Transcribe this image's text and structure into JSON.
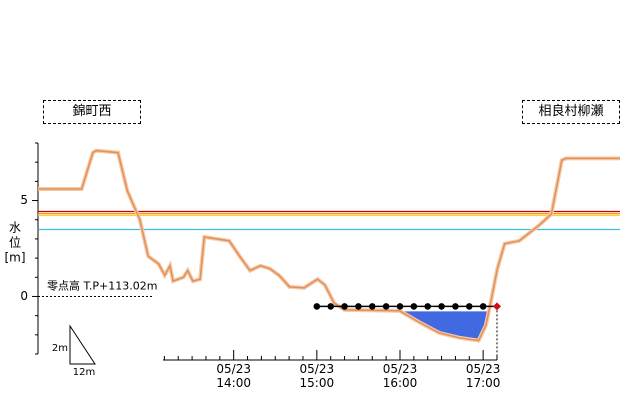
{
  "chart_data": {
    "type": "cross-section",
    "left_bank": "錦町西",
    "right_bank": "相良村柳瀬",
    "y_label": [
      "水",
      "位",
      "[m]"
    ],
    "zero_label": "零点高 T.P+113.02m",
    "scale_height": "2m",
    "scale_width": "12m",
    "ylim": [
      -3,
      8
    ],
    "yticks": [
      0,
      5
    ],
    "yminorticks": [
      -3,
      -2,
      -1,
      1,
      2,
      3,
      4,
      6,
      7,
      8
    ],
    "xlim": [
      0,
      280
    ],
    "profile": {
      "color": "#e0905a",
      "x": [
        0,
        21,
        26.4,
        28,
        38.5,
        43,
        49,
        53,
        58,
        61,
        63.5,
        65,
        70,
        72,
        74.5,
        78,
        80,
        92,
        97,
        102,
        107,
        111.5,
        116,
        121,
        128,
        134.5,
        138,
        142.5,
        147.5,
        174,
        183.5,
        193,
        202.5,
        212,
        215.5,
        218,
        221,
        224.5,
        231.5,
        241,
        247,
        252,
        254,
        280
      ],
      "values": [
        5.6,
        5.6,
        7.5,
        7.6,
        7.5,
        5.5,
        4.0,
        2.1,
        1.7,
        1.1,
        1.6,
        0.8,
        1.0,
        1.35,
        0.8,
        0.9,
        3.1,
        2.9,
        2.1,
        1.35,
        1.6,
        1.45,
        1.1,
        0.5,
        0.45,
        0.9,
        0.6,
        -0.35,
        -0.7,
        -0.75,
        -1.35,
        -1.9,
        -2.15,
        -2.3,
        -1.5,
        -0.2,
        1.45,
        2.75,
        2.9,
        3.7,
        4.3,
        7.1,
        7.2,
        7.2
      ]
    },
    "levels": [
      {
        "value": 4.43,
        "color": "#c00000"
      },
      {
        "value": 4.32,
        "color": "#ff8c1a"
      },
      {
        "value": 4.22,
        "color": "#ffd21a"
      },
      {
        "value": 3.49,
        "color": "#40c0d0"
      }
    ],
    "water_surface": {
      "value": -0.78,
      "color": "#4169e1"
    },
    "time_xlim": [
      789,
      1030
    ],
    "xticks": [
      {
        "value": 840,
        "label": "05/23\n14:00"
      },
      {
        "value": 900,
        "label": "05/23\n15:00"
      },
      {
        "value": 960,
        "label": "05/23\n16:00"
      },
      {
        "value": 1020,
        "label": "05/23\n17:00"
      }
    ],
    "xminorticks": [
      790,
      800,
      810,
      820,
      830,
      850,
      860,
      870,
      880,
      890,
      910,
      920,
      930,
      940,
      950,
      970,
      980,
      990,
      1000,
      1010,
      1030
    ],
    "observations": {
      "color": "#000000",
      "last_color": "#d01010",
      "x": [
        900,
        910,
        920,
        930,
        940,
        950,
        960,
        970,
        980,
        990,
        1000,
        1010,
        1020,
        1030
      ],
      "values": [
        -0.52,
        -0.52,
        -0.52,
        -0.52,
        -0.52,
        -0.52,
        -0.52,
        -0.52,
        -0.52,
        -0.52,
        -0.52,
        -0.52,
        -0.52,
        -0.52
      ]
    }
  }
}
